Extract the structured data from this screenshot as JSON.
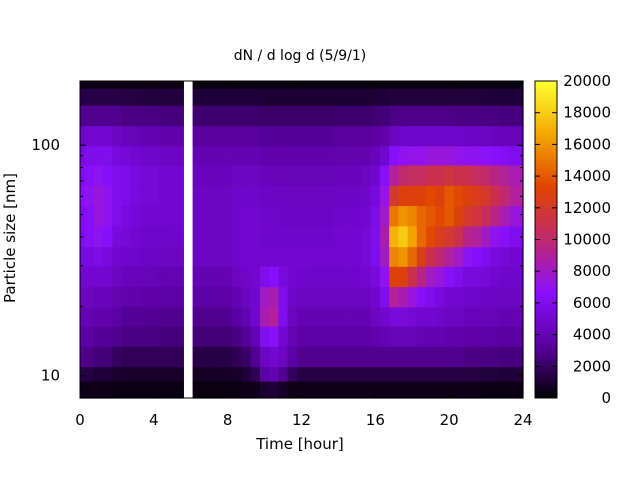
{
  "chart_data": {
    "type": "heatmap",
    "title": "dN / d log d (5/9/1)",
    "xlabel": "Time [hour]",
    "ylabel": "Particle size [nm]",
    "xlim": [
      0,
      24
    ],
    "xticks": [
      0,
      4,
      8,
      12,
      16,
      20,
      24
    ],
    "ylim": [
      8.0,
      190
    ],
    "yscale": "log",
    "yticks": [
      10,
      100
    ],
    "colorbar": {
      "range": [
        0,
        20000
      ],
      "ticks": [
        0,
        2000,
        4000,
        6000,
        8000,
        10000,
        12000,
        14000,
        16000,
        18000,
        20000
      ],
      "colormap": [
        "#000000",
        "#5a00a0",
        "#8a10ff",
        "#c02870",
        "#e04400",
        "#f4a800",
        "#ffff30"
      ]
    },
    "missing_data_gaps_hours": [
      [
        5.6,
        6.1
      ]
    ],
    "time_hours": [
      0.0,
      0.5,
      1.0,
      1.5,
      2.0,
      2.5,
      3.0,
      3.5,
      4.0,
      4.5,
      5.0,
      5.5,
      6.5,
      7.0,
      7.5,
      8.0,
      8.5,
      9.0,
      9.5,
      10.0,
      10.5,
      11.0,
      11.5,
      12.0,
      12.5,
      13.0,
      13.5,
      14.0,
      14.5,
      15.0,
      15.5,
      16.0,
      16.5,
      17.0,
      17.5,
      18.0,
      18.5,
      19.0,
      19.5,
      20.0,
      20.5,
      21.0,
      21.5,
      22.0,
      22.5,
      23.0,
      23.5
    ],
    "size_nm": [
      9,
      10,
      12,
      15,
      18,
      22,
      27,
      33,
      40,
      50,
      60,
      75,
      90,
      110,
      135,
      165,
      190
    ],
    "series": [
      {
        "t": 0.0,
        "dNdlogd": [
          500,
          1500,
          3000,
          3500,
          4000,
          4500,
          5000,
          5500,
          6000,
          6000,
          6500,
          6000,
          5500,
          4500,
          3000,
          1500,
          400
        ]
      },
      {
        "t": 0.5,
        "dNdlogd": [
          500,
          1400,
          2800,
          3500,
          4000,
          4500,
          5000,
          5500,
          6500,
          6500,
          7000,
          6500,
          6000,
          5000,
          3000,
          1500,
          400
        ]
      },
      {
        "t": 1.0,
        "dNdlogd": [
          500,
          1200,
          2500,
          3200,
          3800,
          4300,
          5000,
          5800,
          7000,
          7500,
          7500,
          7000,
          6000,
          5000,
          3000,
          1500,
          400
        ]
      },
      {
        "t": 1.5,
        "dNdlogd": [
          500,
          1200,
          2500,
          3200,
          3800,
          4300,
          5000,
          5500,
          6500,
          7000,
          7000,
          6500,
          6000,
          5000,
          3000,
          1500,
          400
        ]
      },
      {
        "t": 2.0,
        "dNdlogd": [
          400,
          1000,
          2000,
          3000,
          3500,
          4000,
          4500,
          5000,
          5500,
          6000,
          6000,
          6000,
          5500,
          4500,
          3000,
          1500,
          400
        ]
      },
      {
        "t": 2.5,
        "dNdlogd": [
          400,
          900,
          1800,
          2800,
          3200,
          3800,
          4300,
          4800,
          5200,
          5500,
          5800,
          5800,
          5200,
          4300,
          2800,
          1400,
          400
        ]
      },
      {
        "t": 3.0,
        "dNdlogd": [
          400,
          900,
          1800,
          2800,
          3200,
          3800,
          4300,
          4800,
          5000,
          5300,
          5500,
          5500,
          5000,
          4200,
          2800,
          1400,
          400
        ]
      },
      {
        "t": 3.5,
        "dNdlogd": [
          400,
          900,
          1800,
          2700,
          3100,
          3600,
          4200,
          4600,
          4800,
          5000,
          5200,
          5200,
          4800,
          4000,
          2700,
          1300,
          400
        ]
      },
      {
        "t": 4.0,
        "dNdlogd": [
          400,
          900,
          1800,
          2700,
          3100,
          3600,
          4200,
          4600,
          4800,
          5000,
          5200,
          5200,
          4800,
          4000,
          2700,
          1300,
          400
        ]
      },
      {
        "t": 4.5,
        "dNdlogd": [
          400,
          900,
          1800,
          2600,
          3000,
          3500,
          4000,
          4500,
          4800,
          5000,
          5000,
          5000,
          4600,
          3800,
          2600,
          1300,
          400
        ]
      },
      {
        "t": 5.0,
        "dNdlogd": [
          400,
          900,
          1800,
          2600,
          3000,
          3500,
          4000,
          4500,
          4800,
          5000,
          5000,
          5000,
          4600,
          3800,
          2600,
          1300,
          400
        ]
      },
      {
        "t": 5.5,
        "dNdlogd": [
          400,
          900,
          1800,
          2600,
          3000,
          3500,
          4000,
          4500,
          4800,
          5000,
          5000,
          5000,
          4600,
          3800,
          2600,
          1300,
          400
        ]
      },
      {
        "t": 6.5,
        "dNdlogd": [
          300,
          800,
          1500,
          2500,
          3000,
          3500,
          4000,
          4500,
          4500,
          4500,
          4500,
          4300,
          4000,
          3300,
          2300,
          1200,
          300
        ]
      },
      {
        "t": 7.0,
        "dNdlogd": [
          300,
          800,
          1500,
          2500,
          3000,
          3500,
          4000,
          4500,
          4500,
          4500,
          4500,
          4300,
          4000,
          3300,
          2300,
          1200,
          300
        ]
      },
      {
        "t": 7.5,
        "dNdlogd": [
          300,
          800,
          1500,
          2500,
          3000,
          3500,
          4000,
          4500,
          4500,
          4500,
          4500,
          4300,
          4000,
          3300,
          2300,
          1200,
          300
        ]
      },
      {
        "t": 8.0,
        "dNdlogd": [
          300,
          800,
          1500,
          2500,
          3000,
          3500,
          4000,
          4500,
          4500,
          4500,
          4500,
          4300,
          4000,
          3300,
          2300,
          1200,
          300
        ]
      },
      {
        "t": 8.5,
        "dNdlogd": [
          400,
          900,
          1800,
          2800,
          3500,
          4000,
          4500,
          4800,
          4800,
          4800,
          4800,
          4500,
          4000,
          3300,
          2300,
          1200,
          300
        ]
      },
      {
        "t": 9.0,
        "dNdlogd": [
          500,
          1200,
          2200,
          3200,
          4000,
          4500,
          4800,
          5000,
          5000,
          5000,
          4800,
          4500,
          4000,
          3300,
          2300,
          1200,
          300
        ]
      },
      {
        "t": 9.5,
        "dNdlogd": [
          600,
          1800,
          3000,
          4000,
          5000,
          5000,
          5000,
          5000,
          5000,
          5000,
          4800,
          4500,
          4000,
          3300,
          2300,
          1200,
          300
        ]
      },
      {
        "t": 10.0,
        "dNdlogd": [
          1000,
          3500,
          4500,
          6000,
          8500,
          8000,
          6000,
          5000,
          4800,
          4800,
          4600,
          4300,
          3800,
          3200,
          2200,
          1100,
          300
        ]
      },
      {
        "t": 10.5,
        "dNdlogd": [
          1200,
          4000,
          5000,
          6500,
          9000,
          8500,
          6500,
          5000,
          4800,
          4800,
          4600,
          4300,
          3800,
          3200,
          2200,
          1100,
          300
        ]
      },
      {
        "t": 11.0,
        "dNdlogd": [
          800,
          3000,
          4500,
          5000,
          6000,
          6000,
          5500,
          5000,
          4800,
          4600,
          4500,
          4200,
          3800,
          3200,
          2200,
          1100,
          300
        ]
      },
      {
        "t": 11.5,
        "dNdlogd": [
          600,
          2000,
          3500,
          4000,
          4500,
          4800,
          5000,
          5000,
          4800,
          4600,
          4500,
          4200,
          3800,
          3200,
          2200,
          1100,
          300
        ]
      },
      {
        "t": 12.0,
        "dNdlogd": [
          500,
          1500,
          3000,
          3500,
          4000,
          4500,
          4800,
          5000,
          4800,
          4600,
          4500,
          4200,
          3800,
          3200,
          2200,
          1100,
          300
        ]
      },
      {
        "t": 12.5,
        "dNdlogd": [
          500,
          1500,
          3000,
          3500,
          4000,
          4500,
          4800,
          5000,
          4800,
          4600,
          4500,
          4200,
          3800,
          3200,
          2200,
          1100,
          300
        ]
      },
      {
        "t": 13.0,
        "dNdlogd": [
          500,
          1500,
          3000,
          3500,
          4000,
          4500,
          4800,
          5000,
          4800,
          4600,
          4500,
          4200,
          3800,
          3200,
          2200,
          1100,
          300
        ]
      },
      {
        "t": 13.5,
        "dNdlogd": [
          500,
          1500,
          3000,
          3500,
          4000,
          4500,
          4800,
          5000,
          4800,
          4600,
          4500,
          4200,
          3800,
          3200,
          2200,
          1100,
          300
        ]
      },
      {
        "t": 14.0,
        "dNdlogd": [
          500,
          1500,
          3000,
          3500,
          4000,
          4500,
          4800,
          5000,
          5000,
          4800,
          4600,
          4300,
          3900,
          3300,
          2300,
          1100,
          300
        ]
      },
      {
        "t": 14.5,
        "dNdlogd": [
          500,
          1500,
          3000,
          3500,
          4000,
          4500,
          4800,
          5000,
          5000,
          4800,
          4600,
          4300,
          3900,
          3300,
          2300,
          1100,
          300
        ]
      },
      {
        "t": 15.0,
        "dNdlogd": [
          500,
          1500,
          3000,
          3500,
          4000,
          4500,
          4800,
          5000,
          5000,
          4800,
          4600,
          4300,
          3900,
          3300,
          2300,
          1100,
          300
        ]
      },
      {
        "t": 15.5,
        "dNdlogd": [
          500,
          1500,
          3000,
          3500,
          4000,
          4500,
          5000,
          5200,
          5200,
          5000,
          4800,
          4500,
          4000,
          3300,
          2300,
          1100,
          300
        ]
      },
      {
        "t": 16.0,
        "dNdlogd": [
          500,
          1500,
          3000,
          3800,
          4500,
          5000,
          5500,
          6000,
          6000,
          5800,
          5500,
          5000,
          4300,
          3500,
          2400,
          1200,
          300
        ]
      },
      {
        "t": 16.5,
        "dNdlogd": [
          500,
          1500,
          3000,
          4000,
          5000,
          6000,
          7000,
          8000,
          8500,
          8000,
          7500,
          6500,
          5000,
          3800,
          2500,
          1200,
          300
        ]
      },
      {
        "t": 17.0,
        "dNdlogd": [
          500,
          1500,
          3000,
          4200,
          5500,
          9000,
          13000,
          15500,
          17000,
          15000,
          12000,
          9000,
          6500,
          4500,
          2800,
          1300,
          300
        ]
      },
      {
        "t": 17.5,
        "dNdlogd": [
          500,
          1500,
          3000,
          4200,
          5500,
          8500,
          13000,
          16000,
          18000,
          16000,
          13000,
          10000,
          7000,
          4700,
          2900,
          1300,
          300
        ]
      },
      {
        "t": 18.0,
        "dNdlogd": [
          500,
          1500,
          3000,
          4200,
          5200,
          7500,
          11000,
          14500,
          16500,
          15500,
          13000,
          10500,
          7200,
          4800,
          2900,
          1300,
          300
        ]
      },
      {
        "t": 18.5,
        "dNdlogd": [
          500,
          1500,
          3000,
          4000,
          5000,
          6500,
          9500,
          12500,
          14500,
          14500,
          13000,
          10500,
          7200,
          4800,
          2900,
          1300,
          300
        ]
      },
      {
        "t": 19.0,
        "dNdlogd": [
          500,
          1500,
          3000,
          4000,
          5000,
          6000,
          8000,
          11000,
          13500,
          14000,
          13500,
          11000,
          7500,
          4800,
          2900,
          1300,
          300
        ]
      },
      {
        "t": 19.5,
        "dNdlogd": [
          500,
          1500,
          3000,
          4000,
          4800,
          5500,
          7500,
          10000,
          12500,
          13500,
          13000,
          11000,
          7500,
          4800,
          2900,
          1300,
          300
        ]
      },
      {
        "t": 20.0,
        "dNdlogd": [
          500,
          1500,
          3000,
          3800,
          4500,
          5000,
          6500,
          9000,
          12000,
          14000,
          14000,
          11500,
          7500,
          4800,
          2900,
          1300,
          300
        ]
      },
      {
        "t": 20.5,
        "dNdlogd": [
          500,
          1500,
          3000,
          3800,
          4500,
          5000,
          6000,
          8000,
          11000,
          13000,
          13500,
          11000,
          7200,
          4700,
          2800,
          1300,
          300
        ]
      },
      {
        "t": 21.0,
        "dNdlogd": [
          500,
          1400,
          2800,
          3600,
          4300,
          4800,
          5500,
          7000,
          9500,
          12000,
          13000,
          11000,
          7000,
          4600,
          2800,
          1300,
          300
        ]
      },
      {
        "t": 21.5,
        "dNdlogd": [
          500,
          1400,
          2800,
          3600,
          4300,
          4800,
          5500,
          6500,
          9000,
          11500,
          12500,
          10500,
          7000,
          4600,
          2800,
          1300,
          300
        ]
      },
      {
        "t": 22.0,
        "dNdlogd": [
          400,
          1300,
          2700,
          3500,
          4200,
          4600,
          5200,
          6000,
          8000,
          10500,
          12000,
          10000,
          6800,
          4500,
          2700,
          1200,
          300
        ]
      },
      {
        "t": 22.5,
        "dNdlogd": [
          400,
          1300,
          2700,
          3500,
          4200,
          4600,
          5000,
          5500,
          7000,
          9500,
          11000,
          9500,
          6500,
          4400,
          2700,
          1200,
          300
        ]
      },
      {
        "t": 23.0,
        "dNdlogd": [
          400,
          1200,
          2600,
          3400,
          4000,
          4500,
          4800,
          5200,
          6500,
          8500,
          10000,
          9000,
          6300,
          4300,
          2600,
          1200,
          300
        ]
      },
      {
        "t": 23.5,
        "dNdlogd": [
          400,
          1200,
          2600,
          3400,
          4000,
          4500,
          4800,
          5000,
          6000,
          7500,
          9000,
          8500,
          6000,
          4200,
          2600,
          1200,
          300
        ]
      }
    ]
  }
}
